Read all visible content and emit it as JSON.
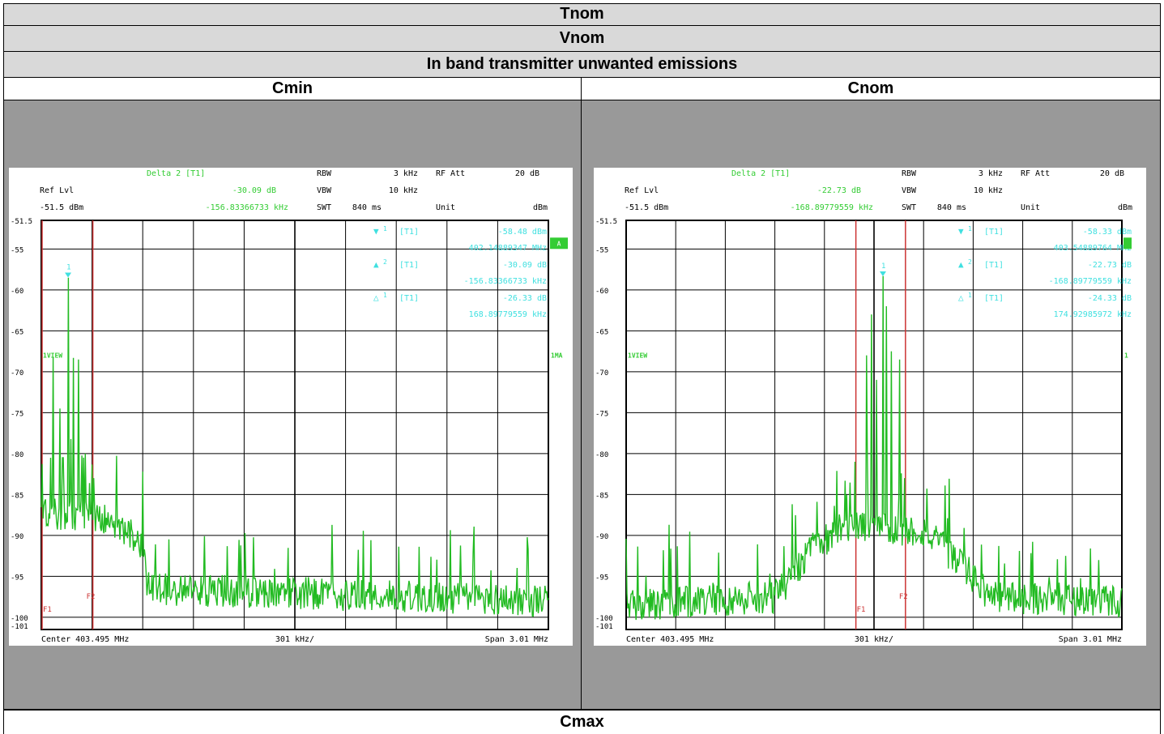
{
  "header": {
    "row1": "Tnom",
    "row2": "Vnom",
    "row3": "In band transmitter unwanted emissions",
    "left_col": "Cmin",
    "right_col": "Cnom",
    "bottom": "Cmax"
  },
  "colors": {
    "trace": "#22bb22",
    "marker_text": "#40e0e0",
    "marker_line": "#cc3333",
    "label_green": "#33cc33",
    "panel_bg": "#999999",
    "grid": "#000000"
  },
  "chart_data": [
    {
      "type": "line",
      "title": "Cmin",
      "header": {
        "delta_label": "Delta 2 [T1]",
        "delta_value": "-30.09 dB",
        "delta_freq": "-156.83366733 kHz",
        "ref_lvl_label": "Ref Lvl",
        "ref_lvl_value": "-51.5 dBm",
        "rbw_label": "RBW",
        "rbw_value": "3 kHz",
        "vbw_label": "VBW",
        "vbw_value": "10 kHz",
        "swt_label": "SWT",
        "swt_value": "840 ms",
        "rfatt_label": "RF Att",
        "rfatt_value": "20 dB",
        "unit_label": "Unit",
        "unit_value": "dBm"
      },
      "markers": [
        {
          "symbol": "▼",
          "num": "1",
          "tag": "[T1]",
          "value": "-58.48 dBm",
          "freq": "402.14889347 MHz"
        },
        {
          "symbol": "▲",
          "num": "2",
          "tag": "[T1]",
          "value": "-30.09 dB",
          "freq": "-156.83366733 kHz"
        },
        {
          "symbol": "△",
          "num": "1",
          "tag": "[T1]",
          "value": "-26.33 dB",
          "freq": "168.89779559 kHz"
        }
      ],
      "y_ticks": [
        "-51.5",
        "-55",
        "-60",
        "-65",
        "-70",
        "-75",
        "-80",
        "-85",
        "-90",
        "-95",
        "-100",
        "-101"
      ],
      "ylim": [
        -101.5,
        -51.5
      ],
      "xlim": [
        401.99,
        405.0
      ],
      "center": "Center 403.495 MHz",
      "per_div": "301 kHz/",
      "span": "Span 3.01 MHz",
      "view_label": "1VIEW",
      "right_label": "1MA",
      "a_badge": "A",
      "f1_label": "F1",
      "f2_label": "F2",
      "f1_freq": 401.99,
      "f2_freq": 402.296,
      "peak_marker_freq": 402.149,
      "peak_marker_level": -58.48,
      "peaks": [
        {
          "x": 402.02,
          "y": -89.5
        },
        {
          "x": 402.06,
          "y": -68.2
        },
        {
          "x": 402.1,
          "y": -74.5
        },
        {
          "x": 402.118,
          "y": -80.5
        },
        {
          "x": 402.149,
          "y": -58.5
        },
        {
          "x": 402.18,
          "y": -68.3
        },
        {
          "x": 402.21,
          "y": -68.5
        },
        {
          "x": 402.25,
          "y": -80.0
        },
        {
          "x": 402.302,
          "y": -83.0
        }
      ],
      "noise_floor": [
        {
          "x": 402.32,
          "y": -87.5
        },
        {
          "x": 402.6,
          "y": -91.0
        },
        {
          "x": 402.62,
          "y": -96.5
        },
        {
          "x": 405.0,
          "y": -98.0
        }
      ]
    },
    {
      "type": "line",
      "title": "Cnom",
      "header": {
        "delta_label": "Delta 2 [T1]",
        "delta_value": "-22.73 dB",
        "delta_freq": "-168.89779559 kHz",
        "ref_lvl_label": "Ref Lvl",
        "ref_lvl_value": "-51.5 dBm",
        "rbw_label": "RBW",
        "rbw_value": "3 kHz",
        "vbw_label": "VBW",
        "vbw_value": "10 kHz",
        "swt_label": "SWT",
        "swt_value": "840 ms",
        "rfatt_label": "RF Att",
        "rfatt_value": "20 dB",
        "unit_label": "Unit",
        "unit_value": "dBm"
      },
      "markers": [
        {
          "symbol": "▼",
          "num": "1",
          "tag": "[T1]",
          "value": "-58.33 dBm",
          "freq": "403.54889764 MHz"
        },
        {
          "symbol": "▲",
          "num": "2",
          "tag": "[T1]",
          "value": "-22.73 dB",
          "freq": "-168.89779559 kHz"
        },
        {
          "symbol": "△",
          "num": "1",
          "tag": "[T1]",
          "value": "-24.33 dB",
          "freq": "174.92985972 kHz"
        }
      ],
      "y_ticks": [
        "-51.5",
        "-55",
        "-60",
        "-65",
        "-70",
        "-75",
        "-80",
        "-85",
        "-90",
        "-95",
        "-100",
        "-101"
      ],
      "ylim": [
        -101.5,
        -51.5
      ],
      "xlim": [
        401.99,
        405.0
      ],
      "center": "Center 403.495 MHz",
      "per_div": "301 kHz/",
      "span": "Span 3.01 MHz",
      "view_label": "1VIEW",
      "right_label": "1",
      "a_badge": "",
      "f1_label": "F1",
      "f2_label": "F2",
      "f1_freq": 403.38,
      "f2_freq": 403.686,
      "peak_marker_freq": 403.549,
      "peak_marker_level": -58.33,
      "peaks": [
        {
          "x": 403.38,
          "y": -81.0
        },
        {
          "x": 403.45,
          "y": -68.0
        },
        {
          "x": 403.48,
          "y": -63.0
        },
        {
          "x": 403.51,
          "y": -71.0
        },
        {
          "x": 403.549,
          "y": -58.3
        },
        {
          "x": 403.57,
          "y": -62.0
        },
        {
          "x": 403.6,
          "y": -67.5
        },
        {
          "x": 403.65,
          "y": -68.5
        },
        {
          "x": 403.68,
          "y": -83.0
        }
      ],
      "noise_floor": [
        {
          "x": 401.99,
          "y": -98.5
        },
        {
          "x": 402.9,
          "y": -97.5
        },
        {
          "x": 403.1,
          "y": -92.0
        },
        {
          "x": 403.3,
          "y": -89.0
        },
        {
          "x": 403.8,
          "y": -89.5
        },
        {
          "x": 404.0,
          "y": -93.0
        },
        {
          "x": 404.2,
          "y": -97.5
        },
        {
          "x": 405.0,
          "y": -98.0
        }
      ]
    }
  ]
}
